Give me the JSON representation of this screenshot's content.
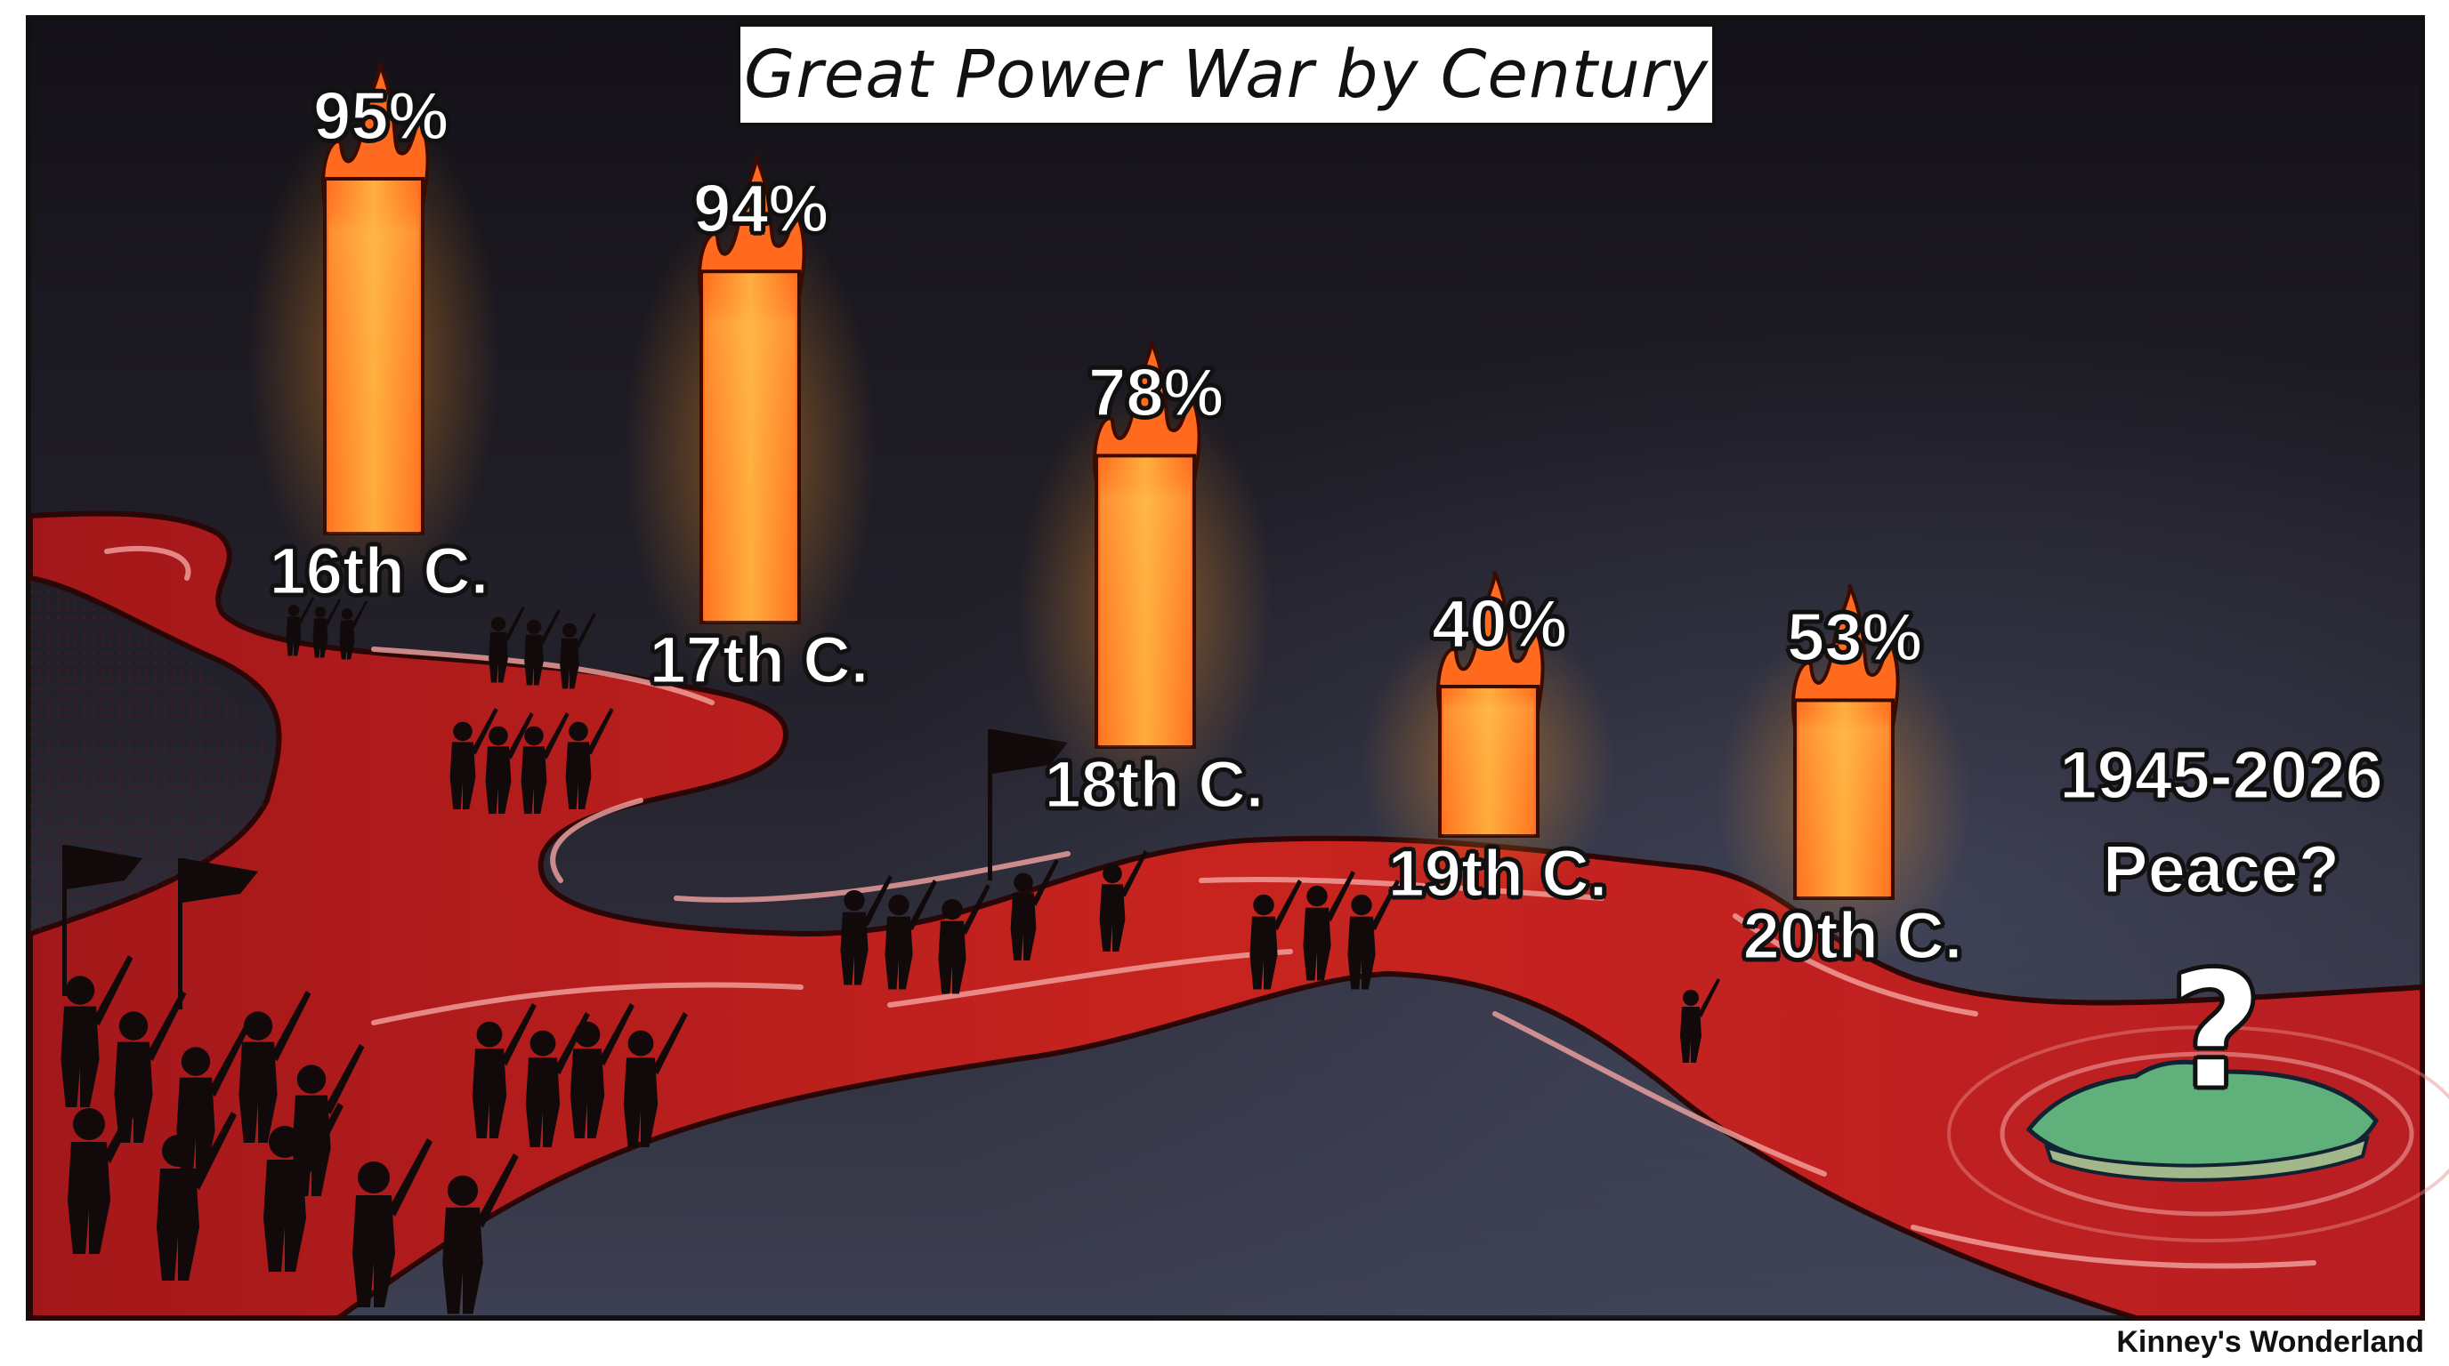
{
  "title": "Great Power War by Century",
  "credit": "Kinney's Wonderland",
  "chart_data": {
    "type": "bar",
    "title": "Great Power War by Century",
    "categories": [
      "16th C.",
      "17th C.",
      "18th C.",
      "19th C.",
      "20th C."
    ],
    "values": [
      95,
      94,
      78,
      40,
      53
    ],
    "value_labels": [
      "95%",
      "94%",
      "78%",
      "40%",
      "53%"
    ],
    "unit": "%",
    "ylim": [
      0,
      100
    ],
    "grid": false,
    "legend": "none",
    "annotation": {
      "period": "1945-2026",
      "text": "Peace?",
      "symbol": "?"
    }
  },
  "colors": {
    "background_top": "#16131a",
    "background_bottom": "#3a3c4f",
    "river": "#c2201c",
    "river_dark": "#7a0d0c",
    "flame_core": "#ffd24a",
    "flame_mid": "#ff9a2a",
    "flame_edge": "#ff5a1e",
    "island": "#5fb07a",
    "silhouette": "#120a0a"
  }
}
